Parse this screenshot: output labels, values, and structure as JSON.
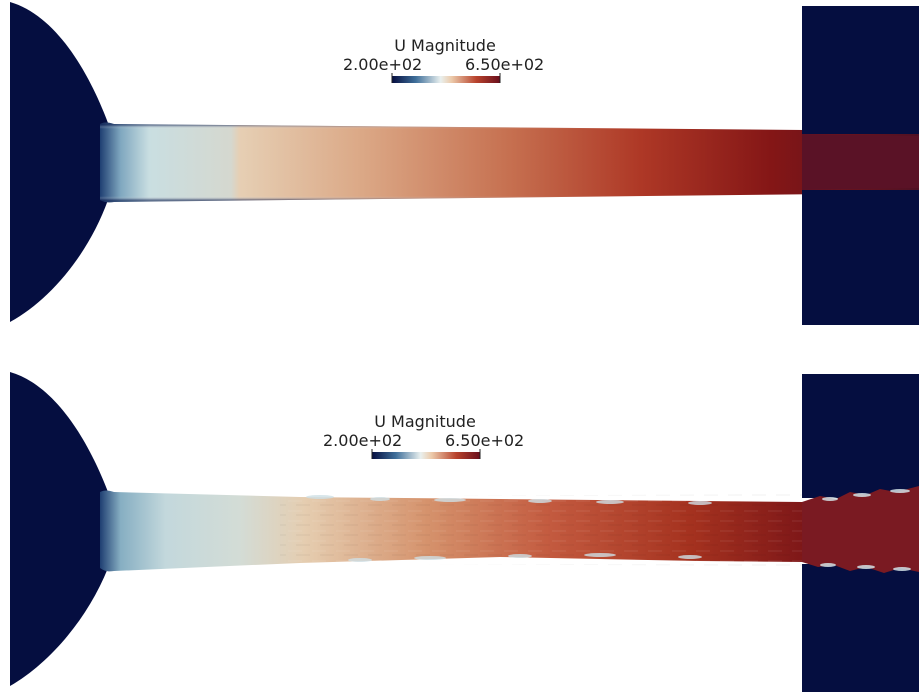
{
  "panels": [
    {
      "legend": {
        "title": "U Magnitude",
        "min_label": "2.00e+02",
        "max_label": "6.50e+02"
      }
    },
    {
      "legend": {
        "title": "U Magnitude",
        "min_label": "2.00e+02",
        "max_label": "6.50e+02"
      }
    }
  ],
  "colors": {
    "solid_region": "#050e40",
    "background": "#ffffff",
    "colormap": [
      "#050e40",
      "#2f5a8e",
      "#cfe2e6",
      "#e8c8a8",
      "#b4432d",
      "#6a0f1c"
    ]
  }
}
